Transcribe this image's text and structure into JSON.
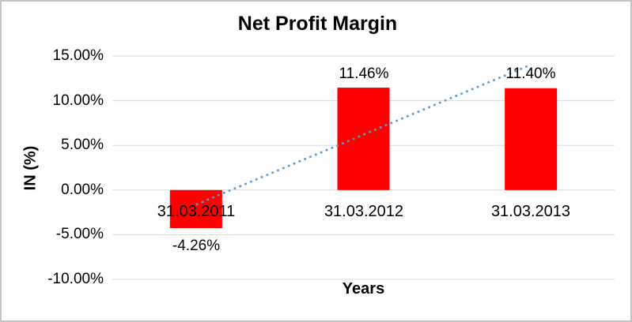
{
  "chart_data": {
    "type": "bar",
    "title": "Net Profit Margin",
    "xlabel": "Years",
    "ylabel": "IN (%)",
    "categories": [
      "31.03.2011",
      "31.03.2012",
      "31.03.2013"
    ],
    "values": [
      -4.26,
      11.46,
      11.4
    ],
    "data_labels": [
      "-4.26%",
      "11.46%",
      "11.40%"
    ],
    "y_ticks": [
      "15.00%",
      "10.00%",
      "5.00%",
      "0.00%",
      "-5.00%",
      "-10.00%"
    ],
    "y_tick_values": [
      15,
      10,
      5,
      0,
      -5,
      -10
    ],
    "ylim": [
      -10,
      15
    ],
    "unit": "percent",
    "legend": "none",
    "grid": "horizontal",
    "bar_color": "#FF0000",
    "gridline_color": "#D9D9D9",
    "text_color": "#000000",
    "trendline": {
      "type": "linear",
      "style": "dotted",
      "color": "#5B9BD5",
      "start_value": -1.63,
      "end_value": 14.03
    }
  }
}
